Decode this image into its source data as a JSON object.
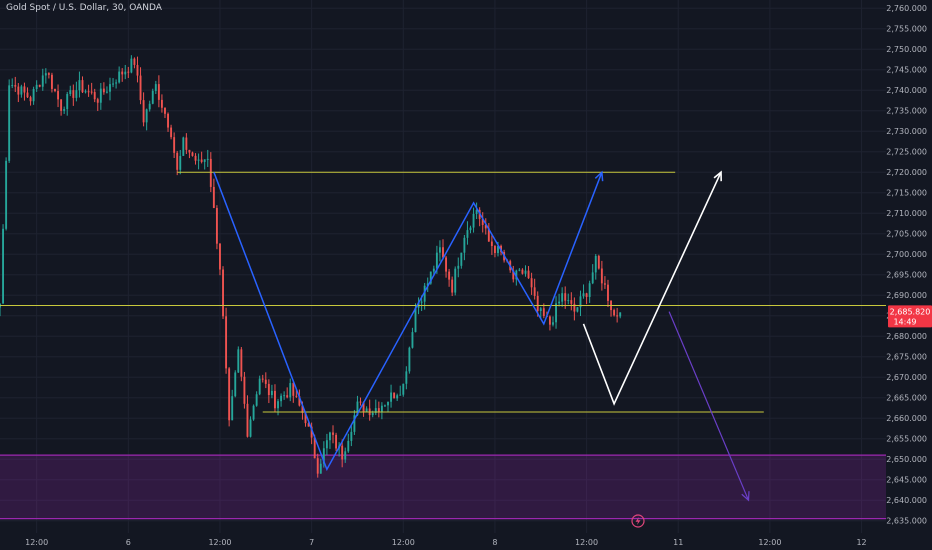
{
  "header": {
    "symbol_title": "Gold Spot / U.S. Dollar, 30, OANDA"
  },
  "colors": {
    "background": "#131722",
    "grid": "#1e2230",
    "up": "#26a69a",
    "down": "#ef5350",
    "yellow_line": "#c8c83c",
    "blue_arrow": "#2962ff",
    "white_path": "#ffffff",
    "purple": "#9c27b0",
    "price_label_bg": "#f23645"
  },
  "icons": {
    "flash": "lightning-bolt-icon"
  },
  "chart_data": {
    "type": "candlestick",
    "instrument": "Gold Spot / U.S. Dollar",
    "timeframe": "30",
    "source": "OANDA",
    "ylim": [
      2632,
      2762
    ],
    "y_ticks": [
      2635,
      2640,
      2645,
      2650,
      2655,
      2660,
      2665,
      2670,
      2675,
      2680,
      2685,
      2690,
      2695,
      2700,
      2705,
      2710,
      2715,
      2720,
      2725,
      2730,
      2735,
      2740,
      2745,
      2750,
      2755,
      2760
    ],
    "y_tick_labels": [
      "2,635.000",
      "2,640.000",
      "2,645.000",
      "2,650.000",
      "2,655.000",
      "2,660.000",
      "2,665.000",
      "2,670.000",
      "2,675.000",
      "2,680.000",
      "2,685.000",
      "2,690.000",
      "2,695.000",
      "2,700.000",
      "2,705.000",
      "2,710.000",
      "2,715.000",
      "2,720.000",
      "2,725.000",
      "2,730.000",
      "2,735.000",
      "2,740.000",
      "2,745.000",
      "2,750.000",
      "2,755.000",
      "2,760.000"
    ],
    "x_range_bars": [
      0,
      290
    ],
    "x_ticks": [
      {
        "bar": 12,
        "label": "12:00"
      },
      {
        "bar": 42,
        "label": "6"
      },
      {
        "bar": 72,
        "label": "12:00"
      },
      {
        "bar": 102,
        "label": "7"
      },
      {
        "bar": 132,
        "label": "12:00"
      },
      {
        "bar": 162,
        "label": "8"
      },
      {
        "bar": 192,
        "label": "12:00"
      },
      {
        "bar": 222,
        "label": "11"
      },
      {
        "bar": 252,
        "label": "12:00"
      },
      {
        "bar": 282,
        "label": "12"
      }
    ],
    "current_price": {
      "value": 2685.82,
      "label": "2,685.820",
      "countdown": "14:49"
    },
    "anchors": [
      {
        "bar": 0,
        "price": 2688
      },
      {
        "bar": 3,
        "price": 2742
      },
      {
        "bar": 10,
        "price": 2738
      },
      {
        "bar": 15,
        "price": 2745
      },
      {
        "bar": 20,
        "price": 2736
      },
      {
        "bar": 26,
        "price": 2741
      },
      {
        "bar": 32,
        "price": 2738
      },
      {
        "bar": 38,
        "price": 2743
      },
      {
        "bar": 44,
        "price": 2747
      },
      {
        "bar": 47,
        "price": 2733
      },
      {
        "bar": 51,
        "price": 2741
      },
      {
        "bar": 56,
        "price": 2730
      },
      {
        "bar": 58,
        "price": 2720
      },
      {
        "bar": 60,
        "price": 2727
      },
      {
        "bar": 65,
        "price": 2722
      },
      {
        "bar": 68,
        "price": 2724
      },
      {
        "bar": 72,
        "price": 2697
      },
      {
        "bar": 75,
        "price": 2658
      },
      {
        "bar": 78,
        "price": 2676
      },
      {
        "bar": 81,
        "price": 2657
      },
      {
        "bar": 85,
        "price": 2670
      },
      {
        "bar": 90,
        "price": 2664
      },
      {
        "bar": 95,
        "price": 2667
      },
      {
        "bar": 100,
        "price": 2660
      },
      {
        "bar": 104,
        "price": 2648
      },
      {
        "bar": 108,
        "price": 2656
      },
      {
        "bar": 112,
        "price": 2651
      },
      {
        "bar": 117,
        "price": 2663
      },
      {
        "bar": 122,
        "price": 2662
      },
      {
        "bar": 126,
        "price": 2664
      },
      {
        "bar": 132,
        "price": 2668
      },
      {
        "bar": 136,
        "price": 2687
      },
      {
        "bar": 140,
        "price": 2693
      },
      {
        "bar": 144,
        "price": 2701
      },
      {
        "bar": 148,
        "price": 2692
      },
      {
        "bar": 152,
        "price": 2705
      },
      {
        "bar": 156,
        "price": 2711
      },
      {
        "bar": 160,
        "price": 2703
      },
      {
        "bar": 164,
        "price": 2700
      },
      {
        "bar": 168,
        "price": 2694
      },
      {
        "bar": 172,
        "price": 2696
      },
      {
        "bar": 176,
        "price": 2686
      },
      {
        "bar": 180,
        "price": 2683
      },
      {
        "bar": 184,
        "price": 2690
      },
      {
        "bar": 188,
        "price": 2686
      },
      {
        "bar": 192,
        "price": 2691
      },
      {
        "bar": 195,
        "price": 2698
      },
      {
        "bar": 198,
        "price": 2692
      },
      {
        "bar": 201,
        "price": 2685
      },
      {
        "bar": 203,
        "price": 2685.82
      }
    ],
    "annotations": {
      "resistance_line": {
        "price": 2720,
        "from_bar": 58,
        "to_bar": 221
      },
      "mid_line": {
        "price": 2687.5,
        "from_bar": 0,
        "to_bar": 290
      },
      "support_line": {
        "price": 2661.5,
        "from_bar": 86,
        "to_bar": 250
      },
      "demand_zone": {
        "from_price": 2635.5,
        "to_price": 2651,
        "from_bar": 0,
        "to_bar": 290
      },
      "blue_zigzag": [
        {
          "bar": 70,
          "price": 2720
        },
        {
          "bar": 107,
          "price": 2647.5
        },
        {
          "bar": 155,
          "price": 2712.5
        },
        {
          "bar": 178,
          "price": 2683
        },
        {
          "bar": 197,
          "price": 2720
        }
      ],
      "white_projection": [
        {
          "bar": 191,
          "price": 2683
        },
        {
          "bar": 201,
          "price": 2663.5
        },
        {
          "bar": 236,
          "price": 2720
        }
      ],
      "purple_projection": [
        {
          "bar": 219,
          "price": 2686
        },
        {
          "bar": 245,
          "price": 2640
        }
      ]
    }
  }
}
